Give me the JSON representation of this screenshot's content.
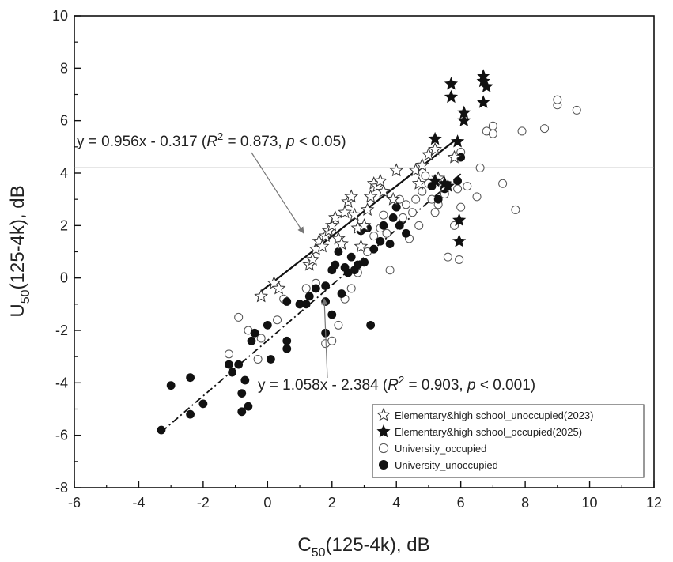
{
  "chart_data": {
    "type": "scatter",
    "xlabel": {
      "main": "C",
      "sub": "50",
      "rest": "(125-4k), dB"
    },
    "ylabel": {
      "main": "U",
      "sub": "50",
      "rest": "(125-4k), dB"
    },
    "xlim": [
      -6,
      12
    ],
    "ylim": [
      -8,
      10
    ],
    "xticks": [
      "-6",
      "-4",
      "-2",
      "0",
      "2",
      "4",
      "6",
      "8",
      "10",
      "12"
    ],
    "yticks": [
      "-8",
      "-6",
      "-4",
      "-2",
      "0",
      "2",
      "4",
      "6",
      "8",
      "10"
    ],
    "grid": false,
    "legend_position": "bottom-right",
    "reference_line": {
      "y": 4.2
    },
    "series": [
      {
        "name": "Elementary&high school_unoccupied(2023)",
        "marker": "star-open",
        "points": [
          [
            -0.2,
            -0.7
          ],
          [
            0.2,
            -0.2
          ],
          [
            0.35,
            -0.4
          ],
          [
            1.3,
            0.5
          ],
          [
            1.4,
            0.7
          ],
          [
            1.5,
            1.1
          ],
          [
            1.6,
            1.4
          ],
          [
            1.7,
            1.2
          ],
          [
            1.8,
            1.6
          ],
          [
            1.9,
            1.8
          ],
          [
            2.0,
            2.0
          ],
          [
            2.1,
            2.3
          ],
          [
            2.2,
            1.5
          ],
          [
            2.3,
            1.3
          ],
          [
            2.4,
            2.5
          ],
          [
            2.5,
            2.9
          ],
          [
            2.6,
            3.1
          ],
          [
            2.7,
            2.4
          ],
          [
            2.8,
            1.9
          ],
          [
            2.9,
            1.2
          ],
          [
            3.0,
            2.0
          ],
          [
            3.1,
            2.6
          ],
          [
            3.2,
            3.1
          ],
          [
            3.3,
            3.6
          ],
          [
            3.4,
            3.5
          ],
          [
            3.5,
            3.7
          ],
          [
            3.6,
            3.3
          ],
          [
            3.9,
            3.0
          ],
          [
            4.0,
            4.1
          ],
          [
            4.6,
            4.1
          ],
          [
            4.7,
            3.6
          ],
          [
            4.8,
            4.3
          ],
          [
            5.0,
            4.7
          ],
          [
            5.2,
            4.9
          ],
          [
            5.3,
            3.8
          ],
          [
            5.5,
            3.5
          ],
          [
            5.8,
            4.6
          ]
        ]
      },
      {
        "name": "Elementary&high school_occupied(2025)",
        "marker": "star-filled",
        "points": [
          [
            5.2,
            5.3
          ],
          [
            5.2,
            3.7
          ],
          [
            5.5,
            3.6
          ],
          [
            5.6,
            3.5
          ],
          [
            5.7,
            7.4
          ],
          [
            5.7,
            6.9
          ],
          [
            5.9,
            5.2
          ],
          [
            5.95,
            2.2
          ],
          [
            5.95,
            1.4
          ],
          [
            6.1,
            6.3
          ],
          [
            6.1,
            6.0
          ],
          [
            6.7,
            7.7
          ],
          [
            6.7,
            7.5
          ],
          [
            6.8,
            7.3
          ],
          [
            6.7,
            6.7
          ]
        ]
      },
      {
        "name": "University_occupied",
        "marker": "circle-open",
        "points": [
          [
            -0.9,
            -1.5
          ],
          [
            -0.6,
            -2.0
          ],
          [
            -0.2,
            -2.3
          ],
          [
            -1.2,
            -2.9
          ],
          [
            -0.3,
            -3.1
          ],
          [
            0.3,
            -1.6
          ],
          [
            0.5,
            -0.8
          ],
          [
            1.0,
            -1.0
          ],
          [
            1.2,
            -0.4
          ],
          [
            1.5,
            -0.2
          ],
          [
            1.8,
            -2.5
          ],
          [
            2.0,
            -2.4
          ],
          [
            2.2,
            -1.8
          ],
          [
            2.4,
            -0.8
          ],
          [
            2.6,
            -0.4
          ],
          [
            2.8,
            0.2
          ],
          [
            3.0,
            0.6
          ],
          [
            3.1,
            1.0
          ],
          [
            3.3,
            1.6
          ],
          [
            3.5,
            1.9
          ],
          [
            3.6,
            2.4
          ],
          [
            3.7,
            1.7
          ],
          [
            3.8,
            0.3
          ],
          [
            4.0,
            2.7
          ],
          [
            4.1,
            3.0
          ],
          [
            4.2,
            2.3
          ],
          [
            4.3,
            2.8
          ],
          [
            4.4,
            1.5
          ],
          [
            4.5,
            2.5
          ],
          [
            4.6,
            3.0
          ],
          [
            4.7,
            2.0
          ],
          [
            4.8,
            3.3
          ],
          [
            4.9,
            3.9
          ],
          [
            5.0,
            3.6
          ],
          [
            5.1,
            3.0
          ],
          [
            5.2,
            2.5
          ],
          [
            5.3,
            2.8
          ],
          [
            5.4,
            3.7
          ],
          [
            5.5,
            3.2
          ],
          [
            5.6,
            0.8
          ],
          [
            5.8,
            2.0
          ],
          [
            5.9,
            3.4
          ],
          [
            5.95,
            0.7
          ],
          [
            6.0,
            2.7
          ],
          [
            6.0,
            4.8
          ],
          [
            6.2,
            3.5
          ],
          [
            6.5,
            3.1
          ],
          [
            6.6,
            4.2
          ],
          [
            6.8,
            5.6
          ],
          [
            7.0,
            5.5
          ],
          [
            7.0,
            5.8
          ],
          [
            7.3,
            3.6
          ],
          [
            7.7,
            2.6
          ],
          [
            7.9,
            5.6
          ],
          [
            8.6,
            5.7
          ],
          [
            9.0,
            6.6
          ],
          [
            9.0,
            6.8
          ],
          [
            9.6,
            6.4
          ]
        ]
      },
      {
        "name": "University_unoccupied",
        "marker": "circle-filled",
        "points": [
          [
            -3.3,
            -5.8
          ],
          [
            -3.0,
            -4.1
          ],
          [
            -2.4,
            -3.8
          ],
          [
            -2.4,
            -5.2
          ],
          [
            -2.0,
            -4.8
          ],
          [
            -1.2,
            -3.3
          ],
          [
            -1.1,
            -3.6
          ],
          [
            -0.9,
            -3.3
          ],
          [
            -0.8,
            -4.4
          ],
          [
            -0.8,
            -5.1
          ],
          [
            -0.7,
            -3.9
          ],
          [
            -0.6,
            -4.9
          ],
          [
            -0.5,
            -2.4
          ],
          [
            -0.4,
            -2.1
          ],
          [
            0.0,
            -1.8
          ],
          [
            0.1,
            -3.1
          ],
          [
            0.6,
            -2.4
          ],
          [
            0.6,
            -2.7
          ],
          [
            0.6,
            -0.9
          ],
          [
            1.0,
            -1.0
          ],
          [
            1.2,
            -1.0
          ],
          [
            1.3,
            -0.7
          ],
          [
            1.5,
            -0.4
          ],
          [
            1.8,
            -0.3
          ],
          [
            1.8,
            -0.9
          ],
          [
            1.8,
            -2.1
          ],
          [
            2.0,
            -1.4
          ],
          [
            2.0,
            0.3
          ],
          [
            2.1,
            0.5
          ],
          [
            2.2,
            1.0
          ],
          [
            2.3,
            -0.6
          ],
          [
            2.4,
            0.4
          ],
          [
            2.5,
            0.2
          ],
          [
            2.6,
            0.8
          ],
          [
            2.7,
            0.3
          ],
          [
            2.8,
            0.5
          ],
          [
            2.9,
            1.8
          ],
          [
            3.0,
            0.6
          ],
          [
            3.1,
            1.9
          ],
          [
            3.2,
            -1.8
          ],
          [
            3.3,
            1.1
          ],
          [
            3.5,
            1.4
          ],
          [
            3.6,
            2.0
          ],
          [
            3.8,
            1.3
          ],
          [
            3.9,
            2.3
          ],
          [
            4.0,
            2.7
          ],
          [
            4.1,
            2.0
          ],
          [
            4.3,
            1.7
          ],
          [
            5.1,
            3.5
          ],
          [
            5.3,
            3.0
          ],
          [
            5.5,
            3.4
          ],
          [
            5.9,
            3.7
          ],
          [
            6.0,
            4.6
          ]
        ]
      }
    ],
    "fits": [
      {
        "x_range": [
          -0.2,
          5.8
        ],
        "slope": 0.956,
        "intercept": -0.317,
        "style": "solid",
        "label": {
          "pre": "y = 0.956x - 0.317 (",
          "r": "R",
          "sup": "2",
          "mid": " = 0.873, ",
          "p": "p",
          "post": " < 0.05)"
        }
      },
      {
        "x_range": [
          -3.3,
          6.0
        ],
        "slope": 1.058,
        "intercept": -2.384,
        "style": "dashdot",
        "label": {
          "pre": "y = 1.058x - 2.384 (",
          "r": "R",
          "sup": "2",
          "mid": " = 0.903, ",
          "p": "p",
          "post": " < 0.001)"
        }
      }
    ]
  }
}
